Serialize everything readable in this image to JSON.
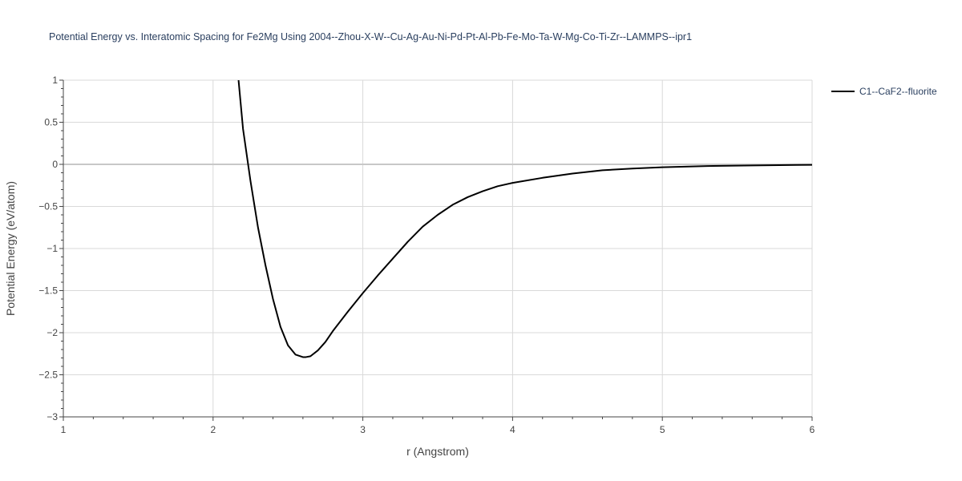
{
  "chart_data": {
    "type": "line",
    "title": "Potential Energy vs. Interatomic Spacing for Fe2Mg Using 2004--Zhou-X-W--Cu-Ag-Au-Ni-Pd-Pt-Al-Pb-Fe-Mo-Ta-W-Mg-Co-Ti-Zr--LAMMPS--ipr1",
    "xlabel": "r (Angstrom)",
    "ylabel": "Potential Energy (eV/atom)",
    "xlim": [
      1,
      6
    ],
    "ylim": [
      -3,
      1
    ],
    "x_ticks": [
      1,
      2,
      3,
      4,
      5,
      6
    ],
    "y_ticks": [
      1,
      0.5,
      0,
      -0.5,
      -1,
      -1.5,
      -2,
      -2.5,
      -3
    ],
    "y_tick_labels": [
      "1",
      "0.5",
      "0",
      "−0.5",
      "−1",
      "−1.5",
      "−2",
      "−2.5",
      "−3"
    ],
    "grid": true,
    "legend_position": "top-right",
    "series": [
      {
        "name": "C1--CaF2--fluorite",
        "color": "#000000",
        "x": [
          2.17,
          2.2,
          2.25,
          2.3,
          2.35,
          2.4,
          2.45,
          2.5,
          2.55,
          2.6,
          2.62,
          2.65,
          2.7,
          2.75,
          2.8,
          2.9,
          3.0,
          3.1,
          3.2,
          3.3,
          3.4,
          3.5,
          3.6,
          3.7,
          3.8,
          3.9,
          4.0,
          4.2,
          4.4,
          4.6,
          4.8,
          5.0,
          5.3,
          5.6,
          5.9,
          6.0
        ],
        "y": [
          1.0,
          0.42,
          -0.2,
          -0.75,
          -1.2,
          -1.6,
          -1.93,
          -2.15,
          -2.26,
          -2.29,
          -2.29,
          -2.28,
          -2.21,
          -2.11,
          -1.98,
          -1.75,
          -1.53,
          -1.32,
          -1.12,
          -0.92,
          -0.74,
          -0.6,
          -0.48,
          -0.39,
          -0.32,
          -0.26,
          -0.22,
          -0.16,
          -0.11,
          -0.07,
          -0.05,
          -0.035,
          -0.02,
          -0.013,
          -0.007,
          -0.006
        ]
      }
    ]
  }
}
